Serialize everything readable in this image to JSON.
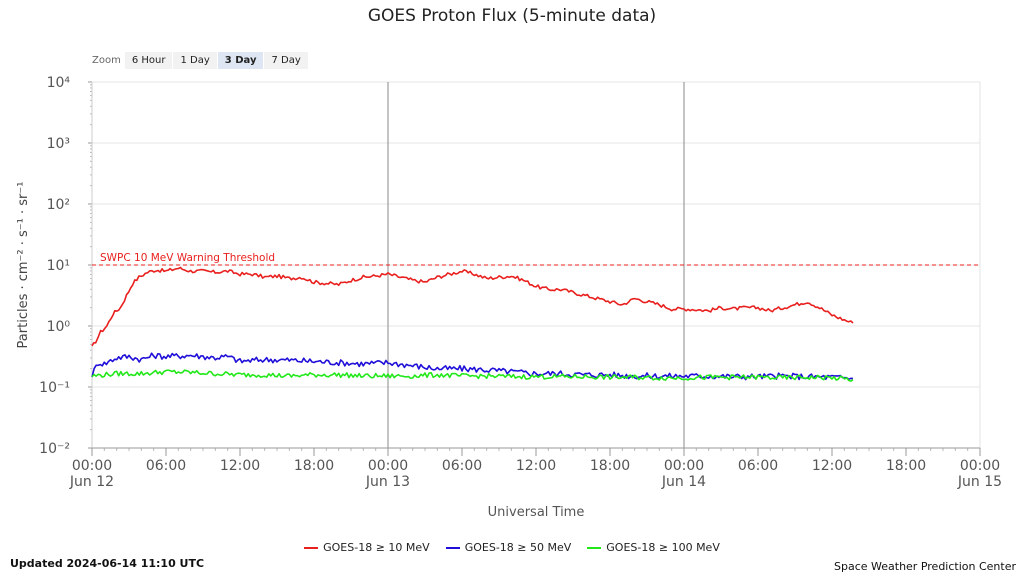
{
  "header": {
    "title": "GOES Proton Flux (5-minute data)"
  },
  "zoom": {
    "label": "Zoom",
    "buttons": [
      "6 Hour",
      "1 Day",
      "3 Day",
      "7 Day"
    ],
    "active": "3 Day"
  },
  "footer": {
    "updated": "Updated 2024-06-14 11:10 UTC",
    "credit": "Space Weather Prediction Center"
  },
  "chart_data": {
    "type": "line",
    "title": "GOES Proton Flux (5-minute data)",
    "xlabel": "Universal Time",
    "ylabel": "Particles · cm⁻² · s⁻¹ · sr⁻¹",
    "yscale": "log",
    "ylim": [
      -2,
      4
    ],
    "xlim_hours": [
      0,
      72
    ],
    "grid": true,
    "yticks": [
      {
        "exp": 4,
        "label": "10⁴"
      },
      {
        "exp": 3,
        "label": "10³"
      },
      {
        "exp": 2,
        "label": "10²"
      },
      {
        "exp": 1,
        "label": "10¹"
      },
      {
        "exp": 0,
        "label": "10⁰"
      },
      {
        "exp": -1,
        "label": "10⁻¹"
      },
      {
        "exp": -2,
        "label": "10⁻²"
      }
    ],
    "xticks": [
      {
        "h": 0,
        "time": "00:00",
        "date": "Jun 12"
      },
      {
        "h": 6,
        "time": "06:00",
        "date": ""
      },
      {
        "h": 12,
        "time": "12:00",
        "date": ""
      },
      {
        "h": 18,
        "time": "18:00",
        "date": ""
      },
      {
        "h": 24,
        "time": "00:00",
        "date": "Jun 13"
      },
      {
        "h": 30,
        "time": "06:00",
        "date": ""
      },
      {
        "h": 36,
        "time": "12:00",
        "date": ""
      },
      {
        "h": 42,
        "time": "18:00",
        "date": ""
      },
      {
        "h": 48,
        "time": "00:00",
        "date": "Jun 14"
      },
      {
        "h": 54,
        "time": "06:00",
        "date": ""
      },
      {
        "h": 60,
        "time": "12:00",
        "date": ""
      },
      {
        "h": 66,
        "time": "18:00",
        "date": ""
      },
      {
        "h": 72,
        "time": "00:00",
        "date": "Jun 15"
      }
    ],
    "day_lines_hours": [
      24,
      48
    ],
    "threshold": {
      "label": "SWPC 10 MeV Warning Threshold",
      "value_log10": 1,
      "color": "#e8201e"
    },
    "series": [
      {
        "name": "GOES-18 ≥ 10 MeV",
        "color": "#e8201e",
        "noise": 0.03,
        "points_hours_log10": [
          [
            0.0,
            -0.35
          ],
          [
            0.3,
            -0.25
          ],
          [
            0.7,
            -0.1
          ],
          [
            1.2,
            0.0
          ],
          [
            1.7,
            0.2
          ],
          [
            2.3,
            0.3
          ],
          [
            2.8,
            0.5
          ],
          [
            3.3,
            0.7
          ],
          [
            3.8,
            0.8
          ],
          [
            4.5,
            0.88
          ],
          [
            5.2,
            0.92
          ],
          [
            6.0,
            0.9
          ],
          [
            7.0,
            0.95
          ],
          [
            8.0,
            0.9
          ],
          [
            9.0,
            0.9
          ],
          [
            10.0,
            0.88
          ],
          [
            11.0,
            0.9
          ],
          [
            12.0,
            0.85
          ],
          [
            13.0,
            0.85
          ],
          [
            14.0,
            0.8
          ],
          [
            15.0,
            0.82
          ],
          [
            16.0,
            0.78
          ],
          [
            17.0,
            0.8
          ],
          [
            18.0,
            0.72
          ],
          [
            19.0,
            0.7
          ],
          [
            20.0,
            0.68
          ],
          [
            21.0,
            0.75
          ],
          [
            22.0,
            0.8
          ],
          [
            23.0,
            0.82
          ],
          [
            24.0,
            0.85
          ],
          [
            25.0,
            0.8
          ],
          [
            26.0,
            0.75
          ],
          [
            27.0,
            0.72
          ],
          [
            28.0,
            0.8
          ],
          [
            29.0,
            0.85
          ],
          [
            30.0,
            0.9
          ],
          [
            31.0,
            0.85
          ],
          [
            32.0,
            0.78
          ],
          [
            33.0,
            0.8
          ],
          [
            34.0,
            0.82
          ],
          [
            35.0,
            0.75
          ],
          [
            36.0,
            0.65
          ],
          [
            37.0,
            0.6
          ],
          [
            38.0,
            0.6
          ],
          [
            39.0,
            0.55
          ],
          [
            40.0,
            0.5
          ],
          [
            41.0,
            0.45
          ],
          [
            42.0,
            0.4
          ],
          [
            43.0,
            0.35
          ],
          [
            44.0,
            0.45
          ],
          [
            45.0,
            0.4
          ],
          [
            46.0,
            0.35
          ],
          [
            47.0,
            0.28
          ],
          [
            48.0,
            0.28
          ],
          [
            49.0,
            0.27
          ],
          [
            50.0,
            0.25
          ],
          [
            51.0,
            0.3
          ],
          [
            52.0,
            0.28
          ],
          [
            53.0,
            0.3
          ],
          [
            54.0,
            0.3
          ],
          [
            55.0,
            0.25
          ],
          [
            56.0,
            0.3
          ],
          [
            57.0,
            0.35
          ],
          [
            58.0,
            0.4
          ],
          [
            59.0,
            0.3
          ],
          [
            60.0,
            0.18
          ],
          [
            61.0,
            0.1
          ],
          [
            61.7,
            0.05
          ]
        ]
      },
      {
        "name": "GOES-18 ≥ 50 MeV",
        "color": "#1f0fd8",
        "noise": 0.05,
        "points_hours_log10": [
          [
            0.0,
            -0.8
          ],
          [
            0.5,
            -0.6
          ],
          [
            1.0,
            -0.62
          ],
          [
            2.0,
            -0.52
          ],
          [
            3.0,
            -0.5
          ],
          [
            4.0,
            -0.55
          ],
          [
            5.0,
            -0.48
          ],
          [
            6.0,
            -0.5
          ],
          [
            8.0,
            -0.48
          ],
          [
            10.0,
            -0.52
          ],
          [
            11.0,
            -0.5
          ],
          [
            12.0,
            -0.58
          ],
          [
            14.0,
            -0.55
          ],
          [
            16.0,
            -0.56
          ],
          [
            18.0,
            -0.58
          ],
          [
            20.0,
            -0.6
          ],
          [
            22.0,
            -0.62
          ],
          [
            24.0,
            -0.6
          ],
          [
            26.0,
            -0.65
          ],
          [
            28.0,
            -0.7
          ],
          [
            30.0,
            -0.7
          ],
          [
            32.0,
            -0.72
          ],
          [
            34.0,
            -0.75
          ],
          [
            36.0,
            -0.78
          ],
          [
            38.0,
            -0.78
          ],
          [
            40.0,
            -0.8
          ],
          [
            42.0,
            -0.8
          ],
          [
            44.0,
            -0.82
          ],
          [
            46.0,
            -0.82
          ],
          [
            48.0,
            -0.82
          ],
          [
            50.0,
            -0.82
          ],
          [
            52.0,
            -0.83
          ],
          [
            54.0,
            -0.83
          ],
          [
            56.0,
            -0.82
          ],
          [
            58.0,
            -0.83
          ],
          [
            60.0,
            -0.84
          ],
          [
            61.7,
            -0.86
          ]
        ]
      },
      {
        "name": "GOES-18 ≥ 100 MeV",
        "color": "#22e81a",
        "noise": 0.04,
        "points_hours_log10": [
          [
            0.0,
            -0.82
          ],
          [
            2.0,
            -0.78
          ],
          [
            4.0,
            -0.78
          ],
          [
            6.0,
            -0.75
          ],
          [
            8.0,
            -0.76
          ],
          [
            10.0,
            -0.78
          ],
          [
            12.0,
            -0.8
          ],
          [
            14.0,
            -0.8
          ],
          [
            16.0,
            -0.82
          ],
          [
            18.0,
            -0.8
          ],
          [
            20.0,
            -0.8
          ],
          [
            22.0,
            -0.82
          ],
          [
            24.0,
            -0.82
          ],
          [
            26.0,
            -0.82
          ],
          [
            28.0,
            -0.8
          ],
          [
            30.0,
            -0.82
          ],
          [
            32.0,
            -0.82
          ],
          [
            34.0,
            -0.83
          ],
          [
            36.0,
            -0.83
          ],
          [
            38.0,
            -0.83
          ],
          [
            40.0,
            -0.83
          ],
          [
            42.0,
            -0.84
          ],
          [
            44.0,
            -0.84
          ],
          [
            46.0,
            -0.85
          ],
          [
            48.0,
            -0.85
          ],
          [
            50.0,
            -0.84
          ],
          [
            52.0,
            -0.84
          ],
          [
            54.0,
            -0.84
          ],
          [
            56.0,
            -0.85
          ],
          [
            58.0,
            -0.84
          ],
          [
            60.0,
            -0.85
          ],
          [
            61.7,
            -0.88
          ]
        ]
      }
    ]
  }
}
